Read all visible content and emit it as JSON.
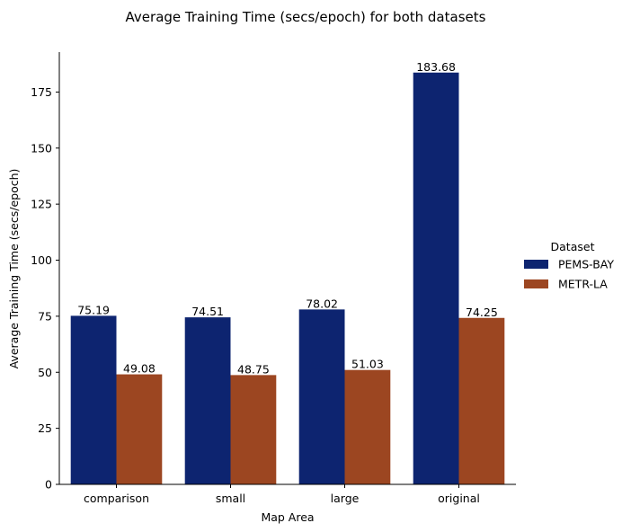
{
  "chart_data": {
    "type": "bar",
    "title": "Average Training Time (secs/epoch) for both datasets",
    "xlabel": "Map Area",
    "ylabel": "Average Training Time (secs/epoch)",
    "categories": [
      "comparison",
      "small",
      "large",
      "original"
    ],
    "series": [
      {
        "name": "PEMS-BAY",
        "values": [
          75.19,
          74.51,
          78.02,
          183.68
        ],
        "labels": [
          "75.19",
          "74.51",
          "78.02",
          "183.68"
        ],
        "color": "#0d2470"
      },
      {
        "name": "METR-LA",
        "values": [
          49.08,
          48.75,
          51.03,
          74.25
        ],
        "labels": [
          "49.08",
          "48.75",
          "51.03",
          "74.25"
        ],
        "color": "#9c4621"
      }
    ],
    "ylim": [
      0,
      192.8
    ],
    "yticks": [
      0,
      25,
      50,
      75,
      100,
      125,
      150,
      175
    ],
    "ytick_labels": [
      "0",
      "25",
      "50",
      "75",
      "100",
      "125",
      "150",
      "175"
    ],
    "grid": false,
    "legend": {
      "title": "Dataset",
      "placement": "right"
    }
  }
}
